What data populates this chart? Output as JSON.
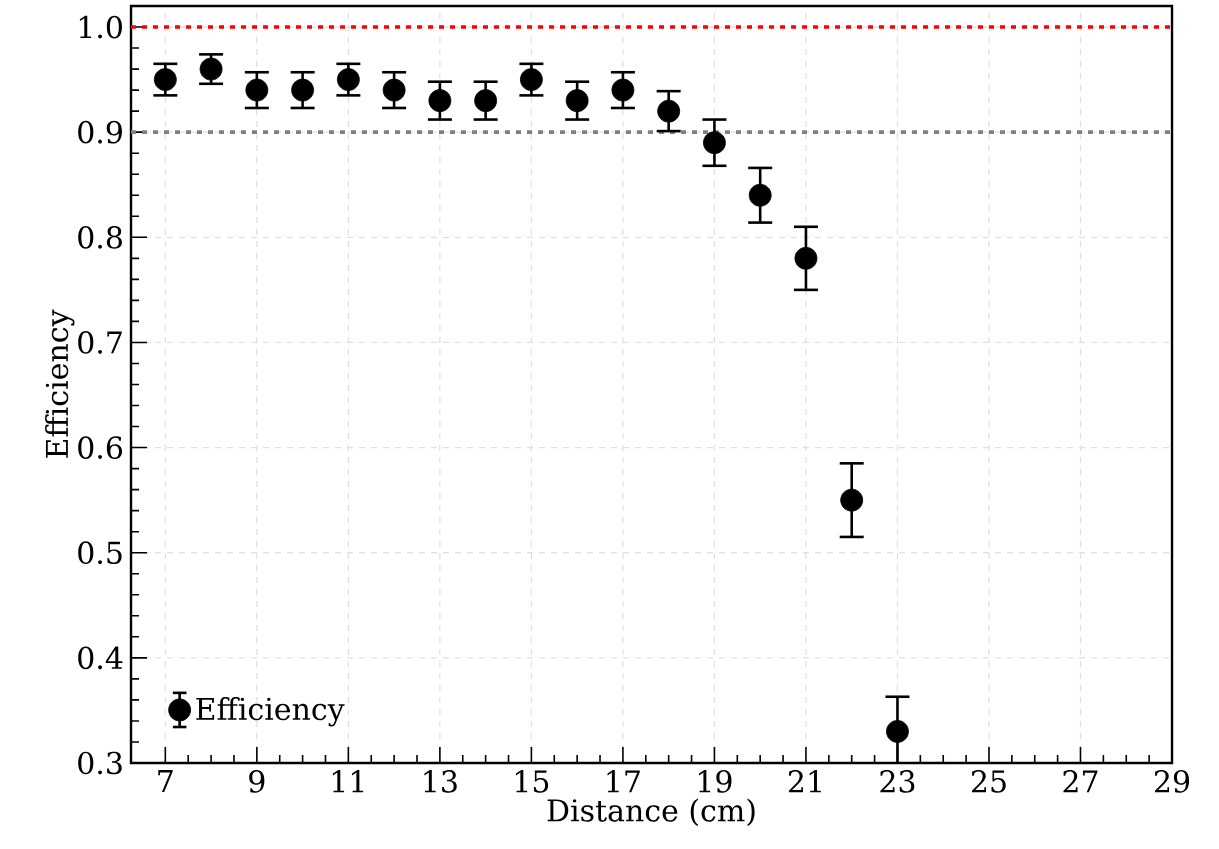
{
  "chart_data": {
    "type": "scatter",
    "xlabel": "Distance (cm)",
    "ylabel": "Efficiency",
    "x": [
      7,
      8,
      9,
      10,
      11,
      12,
      13,
      14,
      15,
      16,
      17,
      18,
      19,
      20,
      21,
      22,
      23
    ],
    "series": [
      {
        "name": "Efficiency",
        "color": "#000000",
        "values": [
          0.95,
          0.96,
          0.94,
          0.94,
          0.95,
          0.94,
          0.93,
          0.93,
          0.95,
          0.93,
          0.94,
          0.92,
          0.89,
          0.84,
          0.78,
          0.55,
          0.33
        ],
        "errors": [
          0.015,
          0.014,
          0.017,
          0.017,
          0.015,
          0.017,
          0.018,
          0.018,
          0.015,
          0.018,
          0.017,
          0.019,
          0.022,
          0.026,
          0.03,
          0.035,
          0.033
        ]
      }
    ],
    "xlim": [
      6.25,
      29
    ],
    "ylim": [
      0.3,
      1.02
    ],
    "xticks": [
      7,
      9,
      11,
      13,
      15,
      17,
      19,
      21,
      23,
      25,
      27,
      29
    ],
    "yticks": [
      0.3,
      0.4,
      0.5,
      0.6,
      0.7,
      0.8,
      0.9,
      {
        "value": 1.0,
        "label": "1.0"
      }
    ],
    "ref_lines": [
      {
        "axis": "y",
        "value": 1.0,
        "color": "#ff0000",
        "line_style": "dotted"
      },
      {
        "axis": "y",
        "value": 0.9,
        "color": "#808080",
        "line_style": "dotted"
      }
    ],
    "grid": true,
    "legend": "bottom left",
    "marker": "circle",
    "line_style": "none"
  }
}
